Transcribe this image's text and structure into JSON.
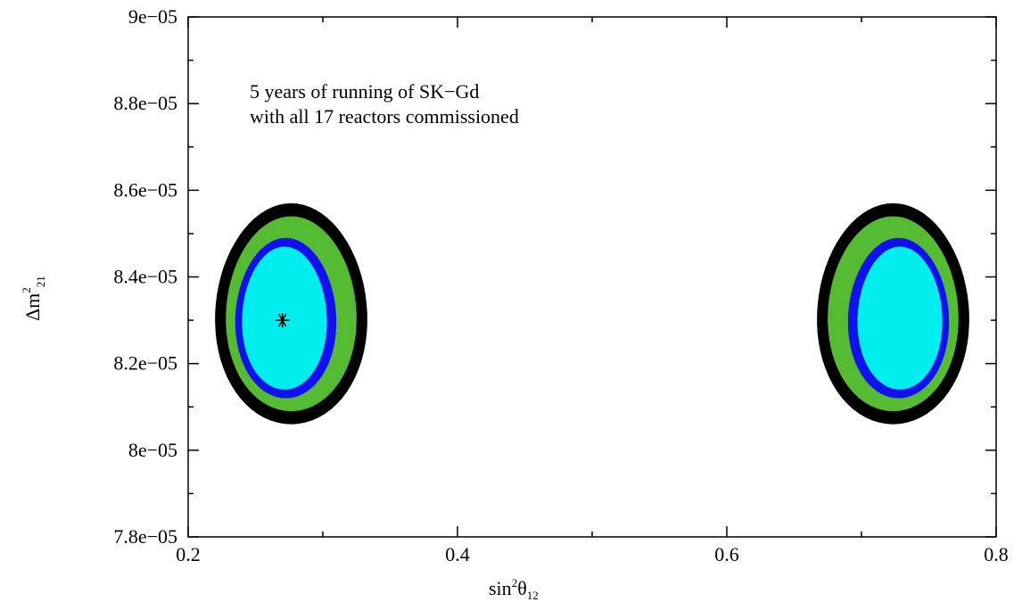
{
  "chart_data": {
    "type": "contour",
    "annotation": [
      "5 years of running of SK−Gd",
      "with all 17 reactors commissioned"
    ],
    "xlabel": {
      "base": "sin",
      "sup": "2",
      "theta": "θ",
      "sub": "12"
    },
    "ylabel": {
      "base": "Δm",
      "sup": "2",
      "sub": "21"
    },
    "xlim": [
      0.2,
      0.8
    ],
    "ylim": [
      7.8e-05,
      9e-05
    ],
    "xticks": [
      0.2,
      0.4,
      0.6,
      0.8
    ],
    "xtick_labels": [
      "0.2",
      "0.4",
      "0.6",
      "0.8"
    ],
    "yticks": [
      7.8e-05,
      8e-05,
      8.2e-05,
      8.4e-05,
      8.6e-05,
      8.8e-05,
      9e-05
    ],
    "ytick_labels": [
      "7.8e−05",
      "8e−05",
      "8.2e−05",
      "8.4e−05",
      "8.6e−05",
      "8.8e−05",
      "9e−05"
    ],
    "best_fit": {
      "x": 0.27,
      "y": 8.3e-05
    },
    "regions": [
      {
        "cx": 0.27,
        "levels": [
          {
            "color": "#000000",
            "xmin": 0.22,
            "xmax": 0.333,
            "ymin": 8.06e-05,
            "ymax": 8.57e-05
          },
          {
            "color": "#55bb33",
            "xmin": 0.228,
            "xmax": 0.325,
            "ymin": 8.09e-05,
            "ymax": 8.54e-05
          },
          {
            "color": "#1111ee",
            "xmin": 0.235,
            "xmax": 0.31,
            "ymin": 8.12e-05,
            "ymax": 8.49e-05
          },
          {
            "color": "#00eeee",
            "xmin": 0.24,
            "xmax": 0.303,
            "ymin": 8.14e-05,
            "ymax": 8.47e-05
          }
        ]
      },
      {
        "cx": 0.73,
        "levels": [
          {
            "color": "#000000",
            "xmin": 0.667,
            "xmax": 0.78,
            "ymin": 8.06e-05,
            "ymax": 8.57e-05
          },
          {
            "color": "#55bb33",
            "xmin": 0.675,
            "xmax": 0.772,
            "ymin": 8.09e-05,
            "ymax": 8.54e-05
          },
          {
            "color": "#1111ee",
            "xmin": 0.69,
            "xmax": 0.765,
            "ymin": 8.12e-05,
            "ymax": 8.49e-05
          },
          {
            "color": "#00eeee",
            "xmin": 0.697,
            "xmax": 0.76,
            "ymin": 8.14e-05,
            "ymax": 8.47e-05
          }
        ]
      }
    ],
    "grid": false,
    "legend": "none"
  }
}
